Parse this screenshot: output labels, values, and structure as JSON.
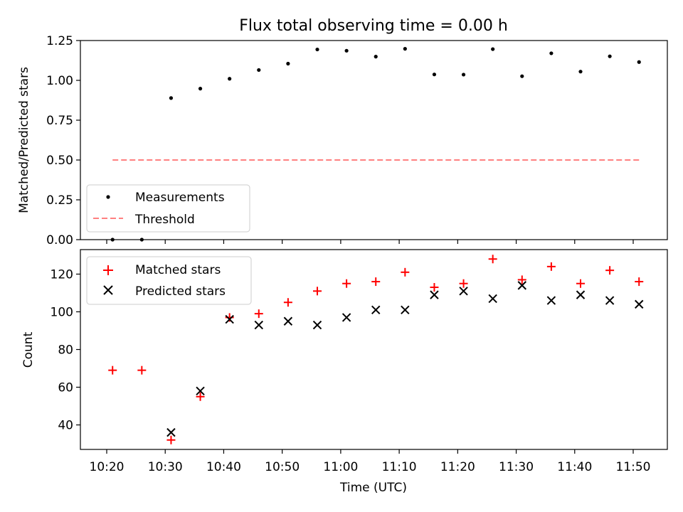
{
  "chart_data": [
    {
      "type": "scatter",
      "title": "Flux total observing time = 0.00 h",
      "xlabel": "",
      "ylabel": "Matched/Predicted stars",
      "ylim": [
        0,
        1.25
      ],
      "yticks": [
        "0.00",
        "0.25",
        "0.50",
        "0.75",
        "1.00",
        "1.25"
      ],
      "legend_placement": "lower-left",
      "series": [
        {
          "name": "Measurements",
          "marker": "dot",
          "color": "#000000",
          "x": [
            "10:21",
            "10:26",
            "10:31",
            "10:36",
            "10:41",
            "10:46",
            "10:51",
            "10:56",
            "11:01",
            "11:06",
            "11:11",
            "11:16",
            "11:21",
            "11:26",
            "11:31",
            "11:36",
            "11:41",
            "11:46",
            "11:51"
          ],
          "values": [
            0.0,
            0.0,
            0.889,
            0.948,
            1.01,
            1.065,
            1.105,
            1.194,
            1.186,
            1.149,
            1.198,
            1.037,
            1.036,
            1.196,
            1.026,
            1.17,
            1.055,
            1.151,
            1.115
          ]
        },
        {
          "name": "Threshold",
          "marker": "dashed-line",
          "color": "#ff8080",
          "x": [
            "10:21",
            "11:51"
          ],
          "values": [
            0.5,
            0.5
          ]
        }
      ]
    },
    {
      "type": "scatter",
      "title": "",
      "xlabel": "Time (UTC)",
      "ylabel": "Count",
      "ylim": [
        27,
        133
      ],
      "yticks": [
        "40",
        "60",
        "80",
        "100",
        "120"
      ],
      "xticks": [
        "10:20",
        "10:30",
        "10:40",
        "10:50",
        "11:00",
        "11:10",
        "11:20",
        "11:30",
        "11:40",
        "11:50"
      ],
      "legend_placement": "top-left",
      "series": [
        {
          "name": "Matched stars",
          "marker": "plus",
          "color": "#ff0000",
          "x": [
            "10:21",
            "10:26",
            "10:31",
            "10:36",
            "10:41",
            "10:46",
            "10:51",
            "10:56",
            "11:01",
            "11:06",
            "11:11",
            "11:16",
            "11:21",
            "11:26",
            "11:31",
            "11:36",
            "11:41",
            "11:46",
            "11:51"
          ],
          "values": [
            69,
            69,
            32,
            55,
            97,
            99,
            105,
            111,
            115,
            116,
            121,
            113,
            115,
            128,
            117,
            124,
            115,
            122,
            116
          ]
        },
        {
          "name": "Predicted stars",
          "marker": "x",
          "color": "#000000",
          "x": [
            "10:31",
            "10:36",
            "10:41",
            "10:46",
            "10:51",
            "10:56",
            "11:01",
            "11:06",
            "11:11",
            "11:16",
            "11:21",
            "11:26",
            "11:31",
            "11:36",
            "11:41",
            "11:46",
            "11:51"
          ],
          "values": [
            36,
            58,
            96,
            93,
            95,
            93,
            97,
            101,
            101,
            109,
            111,
            107,
            114,
            106,
            109,
            106,
            104
          ]
        }
      ]
    }
  ]
}
